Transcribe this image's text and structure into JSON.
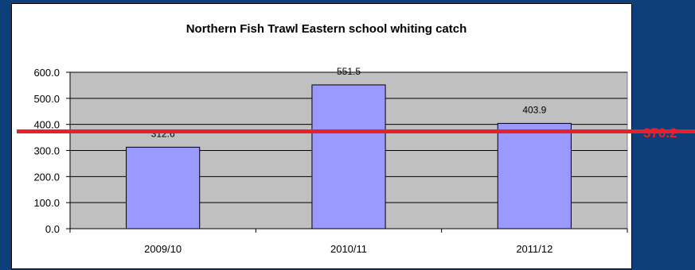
{
  "chart_data": {
    "type": "bar",
    "title": "Northern Fish Trawl Eastern school whiting catch",
    "categories": [
      "2009/10",
      "2010/11",
      "2011/12"
    ],
    "values": [
      312.6,
      551.5,
      403.9
    ],
    "data_labels": [
      "312.6",
      "551.5",
      "403.9"
    ],
    "ylim": [
      0,
      600
    ],
    "yticks": [
      0,
      100,
      200,
      300,
      400,
      500,
      600
    ],
    "ytick_labels": [
      "0.0",
      "100.0",
      "200.0",
      "300.0",
      "400.0",
      "500.0",
      "600.0"
    ],
    "xlabel": "",
    "ylabel": "",
    "grid": true,
    "legend": "none",
    "reference_line": {
      "value": 370.2,
      "label": "370.2"
    }
  },
  "colors": {
    "background": "#0d3f7a",
    "panel": "#ffffff",
    "plot_area": "#c0c0c0",
    "bar_fill": "#9999ff",
    "bar_stroke": "#000000",
    "reference_line": "#e8202a"
  }
}
